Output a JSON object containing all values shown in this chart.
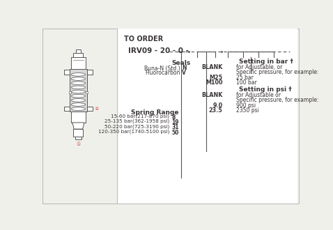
{
  "bg_color": "#f0f0eb",
  "panel_bg": "#ffffff",
  "title": "TO ORDER",
  "model_code": "IRV09 - 20 - 0 -",
  "text_color": "#3a3535",
  "seals_title": "Seals",
  "seals_items": [
    [
      "Buna-N (Std.)",
      "N"
    ],
    [
      "Fluorocarbon",
      "V"
    ]
  ],
  "spring_title": "Spring Range",
  "spring_items": [
    [
      "15-60 bar(217-870 psi)",
      "8"
    ],
    [
      "25-135 bar(362-1958 psi)",
      "19"
    ],
    [
      "50-220 bar(725-3190 psi)",
      "31"
    ],
    [
      "120-350 bar(1740-5100 psi)",
      "50"
    ]
  ],
  "bar_title": "Setting in bar †",
  "bar_items": [
    [
      "BLANK",
      "for Adjustable, or"
    ],
    [
      "",
      "Specific pressure, for example:"
    ],
    [
      "M25",
      "25 bar"
    ],
    [
      "M100",
      "100 bar"
    ]
  ],
  "psi_title": "Setting in psi †",
  "psi_items": [
    [
      "BLANK",
      "for Adjustable or"
    ],
    [
      "",
      "Specific pressure, for example:"
    ],
    [
      "9.0",
      "900 psi"
    ],
    [
      "23.5",
      "2350 psi"
    ]
  ],
  "line_color": "#555555",
  "valve_color": "#666666"
}
